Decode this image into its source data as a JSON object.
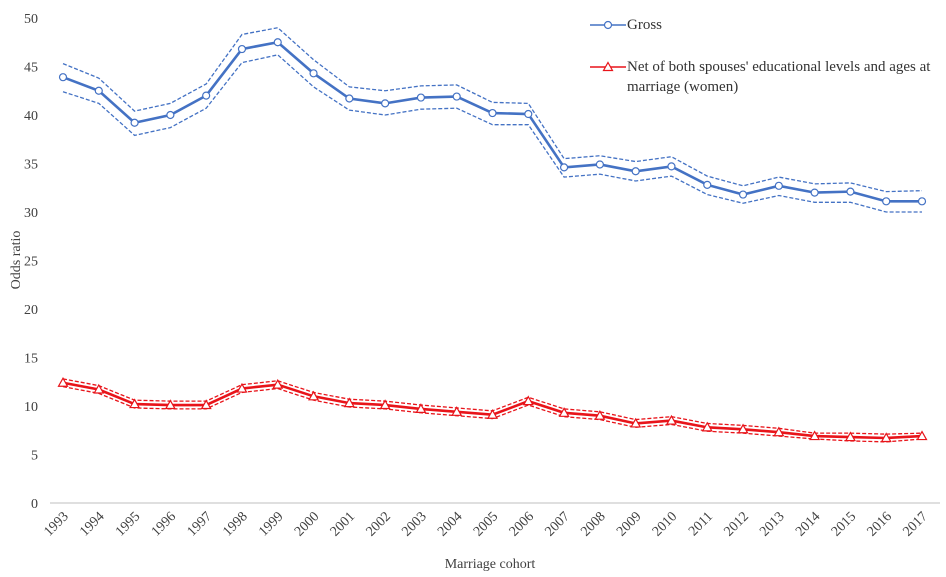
{
  "chart_data": {
    "type": "line",
    "x_label": "Marriage cohort",
    "y_label": "Odds ratio",
    "categories": [
      "1993",
      "1994",
      "1995",
      "1996",
      "1997",
      "1998",
      "1999",
      "2000",
      "2001",
      "2002",
      "2003",
      "2004",
      "2005",
      "2006",
      "2007",
      "2008",
      "2009",
      "2010",
      "2011",
      "2012",
      "2013",
      "2014",
      "2015",
      "2016",
      "2017"
    ],
    "series": [
      {
        "name": "Gross",
        "color": "#4472c4",
        "marker": "circle",
        "values": [
          43.9,
          42.5,
          39.2,
          40.0,
          42.0,
          46.8,
          47.5,
          44.3,
          41.7,
          41.2,
          41.8,
          41.9,
          40.2,
          40.1,
          34.6,
          34.9,
          34.2,
          34.7,
          32.8,
          31.8,
          32.7,
          32.0,
          32.1,
          31.1,
          31.1
        ],
        "upper": [
          45.3,
          43.8,
          40.4,
          41.2,
          43.2,
          48.3,
          49.0,
          45.7,
          42.9,
          42.5,
          43.0,
          43.1,
          41.3,
          41.2,
          35.5,
          35.8,
          35.2,
          35.7,
          33.7,
          32.7,
          33.6,
          32.9,
          33.0,
          32.1,
          32.2
        ],
        "lower": [
          42.4,
          41.2,
          37.9,
          38.7,
          40.7,
          45.4,
          46.2,
          42.9,
          40.5,
          40.0,
          40.6,
          40.7,
          39.0,
          39.0,
          33.6,
          33.9,
          33.2,
          33.7,
          31.8,
          30.9,
          31.7,
          31.0,
          31.0,
          30.0,
          30.0
        ]
      },
      {
        "name": "Net of both spouses' educational levels and ages at marriage (women)",
        "color": "#e8141a",
        "marker": "triangle",
        "values": [
          12.4,
          11.7,
          10.2,
          10.1,
          10.1,
          11.8,
          12.2,
          11.0,
          10.3,
          10.1,
          9.7,
          9.4,
          9.1,
          10.5,
          9.3,
          9.0,
          8.2,
          8.5,
          7.8,
          7.6,
          7.3,
          6.9,
          6.8,
          6.7,
          6.9
        ],
        "upper": [
          12.8,
          12.1,
          10.6,
          10.5,
          10.5,
          12.2,
          12.6,
          11.4,
          10.7,
          10.5,
          10.1,
          9.8,
          9.5,
          10.9,
          9.7,
          9.4,
          8.6,
          8.9,
          8.2,
          8.0,
          7.7,
          7.2,
          7.2,
          7.1,
          7.2
        ],
        "lower": [
          12.0,
          11.3,
          9.8,
          9.7,
          9.7,
          11.4,
          11.8,
          10.6,
          9.9,
          9.7,
          9.3,
          9.0,
          8.7,
          10.1,
          8.9,
          8.6,
          7.8,
          8.1,
          7.4,
          7.2,
          6.9,
          6.6,
          6.4,
          6.3,
          6.6
        ]
      }
    ],
    "ylim": [
      0,
      50
    ],
    "yticks": [
      0,
      5,
      10,
      15,
      20,
      25,
      30,
      35,
      40,
      45,
      50
    ],
    "grid": false,
    "legend": "top-right"
  }
}
